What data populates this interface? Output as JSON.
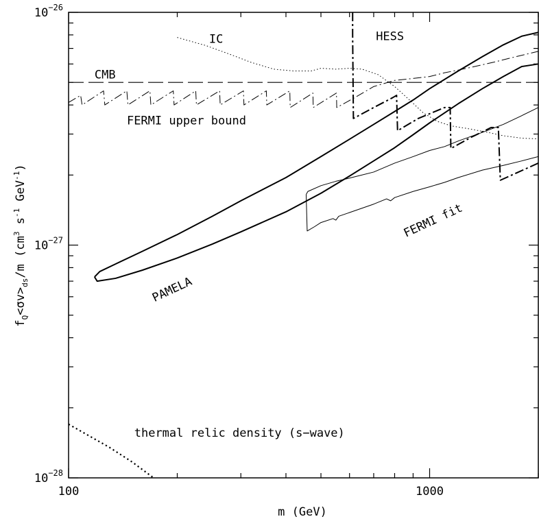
{
  "chart_data": {
    "type": "line",
    "x_scale": "log",
    "y_scale": "log",
    "xlim": [
      100,
      2000
    ],
    "ylim": [
      1e-28,
      1e-26
    ],
    "grid": false,
    "xlabel": "m  (GeV)",
    "ylabel_main": "f",
    "ylabel_sub_q": "Q",
    "ylabel_mid": "<σv>",
    "ylabel_sub_ds": "ds",
    "ylabel_tail": "/m   (cm",
    "ylabel_exp3": "3",
    "ylabel_s": " s",
    "ylabel_exp_m1": "-1",
    "ylabel_gev": " GeV",
    "ylabel_close": ")",
    "x_tick_labels": [
      {
        "value": 100,
        "label": "100"
      },
      {
        "value": 1000,
        "label": "1000"
      }
    ],
    "y_tick_labels": [
      {
        "value": 1e-26,
        "base": "10",
        "exp": "−26"
      },
      {
        "value": 1e-27,
        "base": "10",
        "exp": "−27"
      },
      {
        "value": 1e-28,
        "base": "10",
        "exp": "−28"
      }
    ],
    "annotations": [
      {
        "name": "label-ic",
        "text": "IC",
        "x": 245,
        "y": 7.4e-27,
        "rotate": 0
      },
      {
        "name": "label-hess",
        "text": "HESS",
        "x": 710,
        "y": 7.6e-27,
        "rotate": 0
      },
      {
        "name": "label-cmb",
        "text": "CMB",
        "x": 118,
        "y": 5.2e-27,
        "rotate": 0
      },
      {
        "name": "label-fermi-upper",
        "text": "FERMI upper bound",
        "x": 145,
        "y": 3.3e-27,
        "rotate": 0
      },
      {
        "name": "label-fermi-fit",
        "text": "FERMI fit",
        "x": 860,
        "y": 1.08e-27,
        "rotate": -25
      },
      {
        "name": "label-pamela",
        "text": "PAMELA",
        "x": 173,
        "y": 5.7e-28,
        "rotate": -25
      },
      {
        "name": "label-thermal",
        "text": "thermal relic density (s−wave)",
        "x": 152,
        "y": 1.5e-28,
        "rotate": 0
      }
    ],
    "series": [
      {
        "style": "dashed",
        "width": 1.2,
        "points": [
          [
            100,
            5e-27
          ],
          [
            2000,
            5e-27
          ]
        ]
      },
      {
        "style": "dotted-fine",
        "width": 1.0,
        "points": [
          [
            200,
            7.8e-27
          ],
          [
            240,
            7.2e-27
          ],
          [
            280,
            6.6e-27
          ],
          [
            320,
            6.1e-27
          ],
          [
            370,
            5.7e-27
          ],
          [
            420,
            5.6e-27
          ],
          [
            470,
            5.6e-27
          ],
          [
            500,
            5.75e-27
          ],
          [
            550,
            5.7e-27
          ],
          [
            600,
            5.75e-27
          ],
          [
            650,
            5.7e-27
          ],
          [
            720,
            5.4e-27
          ],
          [
            800,
            4.8e-27
          ],
          [
            880,
            4.2e-27
          ],
          [
            960,
            3.7e-27
          ],
          [
            1050,
            3.4e-27
          ],
          [
            1150,
            3.25e-27
          ],
          [
            1300,
            3.15e-27
          ],
          [
            1450,
            3.05e-27
          ],
          [
            1600,
            2.95e-27
          ],
          [
            1800,
            2.88e-27
          ],
          [
            2000,
            2.86e-27
          ]
        ]
      },
      {
        "style": "dotted-bold",
        "width": 2.2,
        "points": [
          [
            100,
            1.7e-28
          ],
          [
            130,
            1.35e-28
          ],
          [
            150,
            1.17e-28
          ],
          [
            172,
            1e-28
          ]
        ]
      },
      {
        "style": "dashdot",
        "width": 1.0,
        "points": [
          [
            100,
            4.1e-27
          ],
          [
            108,
            4.4e-27
          ],
          [
            109,
            4e-27
          ],
          [
            125,
            4.6e-27
          ],
          [
            126,
            4e-27
          ],
          [
            145,
            4.6e-27
          ],
          [
            146,
            4e-27
          ],
          [
            168,
            4.6e-27
          ],
          [
            169,
            4e-27
          ],
          [
            195,
            4.6e-27
          ],
          [
            196,
            4e-27
          ],
          [
            225,
            4.6e-27
          ],
          [
            226,
            4e-27
          ],
          [
            262,
            4.6e-27
          ],
          [
            263,
            4e-27
          ],
          [
            305,
            4.6e-27
          ],
          [
            306,
            4e-27
          ],
          [
            353,
            4.6e-27
          ],
          [
            354,
            4e-27
          ],
          [
            410,
            4.6e-27
          ],
          [
            411,
            3.9e-27
          ],
          [
            475,
            4.5e-27
          ],
          [
            476,
            3.9e-27
          ],
          [
            552,
            4.5e-27
          ],
          [
            553,
            3.9e-27
          ],
          [
            620,
            4.3e-27
          ],
          [
            700,
            4.8e-27
          ],
          [
            800,
            5.1e-27
          ],
          [
            900,
            5.2e-27
          ],
          [
            1000,
            5.3e-27
          ],
          [
            1100,
            5.5e-27
          ],
          [
            1200,
            5.65e-27
          ],
          [
            1300,
            5.8e-27
          ],
          [
            1500,
            6.1e-27
          ],
          [
            1700,
            6.4e-27
          ],
          [
            2000,
            6.8e-27
          ]
        ]
      },
      {
        "style": "dashdot-bold",
        "width": 2.0,
        "points": [
          [
            612,
            1e-26
          ],
          [
            612,
            8e-27
          ],
          [
            615,
            3.5e-27
          ],
          [
            700,
            3.9e-27
          ],
          [
            790,
            4.3e-27
          ],
          [
            810,
            4.4e-27
          ],
          [
            815,
            3.1e-27
          ],
          [
            930,
            3.5e-27
          ],
          [
            1100,
            3.9e-27
          ],
          [
            1140,
            3.9e-27
          ],
          [
            1145,
            2.6e-27
          ],
          [
            1300,
            2.9e-27
          ],
          [
            1480,
            3.2e-27
          ],
          [
            1550,
            3.2e-27
          ],
          [
            1570,
            1.9e-27
          ],
          [
            1750,
            2.05e-27
          ],
          [
            2000,
            2.25e-27
          ]
        ]
      },
      {
        "style": "solid",
        "width": 2.0,
        "points": [
          [
            118,
            7.3e-28
          ],
          [
            120,
            7e-28
          ],
          [
            135,
            7.2e-28
          ],
          [
            160,
            7.8e-28
          ],
          [
            200,
            8.8e-28
          ],
          [
            250,
            1.01e-27
          ],
          [
            300,
            1.14e-27
          ],
          [
            400,
            1.39e-27
          ],
          [
            500,
            1.67e-27
          ],
          [
            600,
            1.98e-27
          ],
          [
            700,
            2.3e-27
          ],
          [
            800,
            2.62e-27
          ],
          [
            900,
            2.98e-27
          ],
          [
            1000,
            3.35e-27
          ],
          [
            1200,
            4.05e-27
          ],
          [
            1400,
            4.7e-27
          ],
          [
            1600,
            5.3e-27
          ],
          [
            1800,
            5.85e-27
          ],
          [
            2000,
            6e-27
          ]
        ]
      },
      {
        "style": "solid",
        "width": 2.0,
        "points": [
          [
            118,
            7.3e-28
          ],
          [
            122,
            7.7e-28
          ],
          [
            135,
            8.3e-28
          ],
          [
            160,
            9.4e-28
          ],
          [
            200,
            1.11e-27
          ],
          [
            250,
            1.33e-27
          ],
          [
            300,
            1.55e-27
          ],
          [
            400,
            1.95e-27
          ],
          [
            500,
            2.4e-27
          ],
          [
            600,
            2.85e-27
          ],
          [
            700,
            3.3e-27
          ],
          [
            800,
            3.75e-27
          ],
          [
            900,
            4.2e-27
          ],
          [
            1000,
            4.7e-27
          ],
          [
            1200,
            5.6e-27
          ],
          [
            1400,
            6.45e-27
          ],
          [
            1600,
            7.25e-27
          ],
          [
            1800,
            7.9e-27
          ],
          [
            2000,
            8.2e-27
          ]
        ]
      },
      {
        "style": "solid",
        "width": 1.0,
        "points": [
          [
            455,
            1.65e-27
          ],
          [
            460,
            1.7e-27
          ],
          [
            500,
            1.8e-27
          ],
          [
            550,
            1.88e-27
          ],
          [
            600,
            1.94e-27
          ],
          [
            700,
            2.06e-27
          ],
          [
            800,
            2.25e-27
          ],
          [
            900,
            2.4e-27
          ],
          [
            1000,
            2.55e-27
          ],
          [
            1100,
            2.65e-27
          ],
          [
            1200,
            2.8e-27
          ],
          [
            1400,
            3.05e-27
          ],
          [
            1600,
            3.3e-27
          ],
          [
            1800,
            3.6e-27
          ],
          [
            2000,
            3.9e-27
          ]
        ]
      },
      {
        "style": "solid",
        "width": 1.0,
        "points": [
          [
            455,
            1.65e-27
          ],
          [
            458,
            1.15e-27
          ],
          [
            480,
            1.2e-27
          ],
          [
            500,
            1.25e-27
          ],
          [
            540,
            1.3e-27
          ],
          [
            550,
            1.28e-27
          ],
          [
            560,
            1.33e-27
          ],
          [
            600,
            1.38e-27
          ],
          [
            700,
            1.5e-27
          ],
          [
            760,
            1.58e-27
          ],
          [
            780,
            1.55e-27
          ],
          [
            800,
            1.6e-27
          ],
          [
            900,
            1.7e-27
          ],
          [
            1000,
            1.78e-27
          ],
          [
            1100,
            1.86e-27
          ],
          [
            1200,
            1.95e-27
          ],
          [
            1400,
            2.1e-27
          ],
          [
            1600,
            2.2e-27
          ],
          [
            1800,
            2.3e-27
          ],
          [
            2000,
            2.4e-27
          ]
        ]
      }
    ]
  }
}
